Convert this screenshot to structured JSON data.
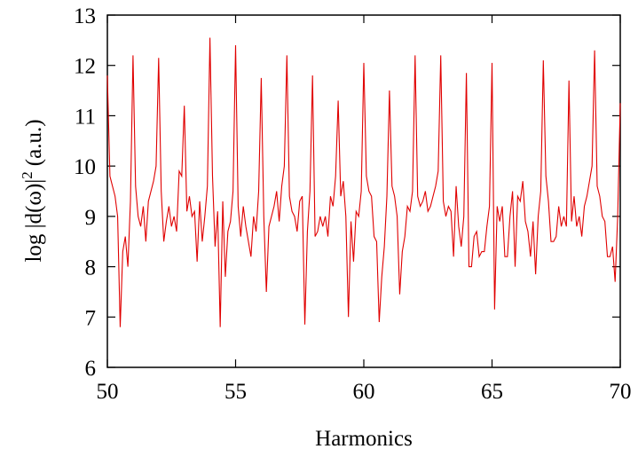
{
  "chart_data": {
    "type": "line",
    "xlabel": "Harmonics",
    "ylabel": "log |d(ω)|",
    "ylabel_superscript": "2",
    "ylabel_unit": "(a.u.)",
    "xlim": [
      50,
      70
    ],
    "ylim": [
      6,
      13
    ],
    "xticks": [
      50,
      55,
      60,
      65,
      70
    ],
    "yticks": [
      6,
      7,
      8,
      9,
      10,
      11,
      12,
      13
    ],
    "grid": false,
    "line_color": "#e00000",
    "series": [
      {
        "x": [
          50.0,
          50.1,
          50.2,
          50.3,
          50.4,
          50.5,
          50.6,
          50.7,
          50.8,
          50.9,
          51.0,
          51.1,
          51.2,
          51.3,
          51.4,
          51.5,
          51.6,
          51.7,
          51.8,
          51.9,
          52.0,
          52.1,
          52.2,
          52.3,
          52.4,
          52.5,
          52.6,
          52.7,
          52.8,
          52.9,
          53.0,
          53.1,
          53.2,
          53.3,
          53.4,
          53.5,
          53.6,
          53.7,
          53.8,
          53.9,
          54.0,
          54.1,
          54.2,
          54.3,
          54.4,
          54.5,
          54.6,
          54.7,
          54.8,
          54.9,
          55.0,
          55.1,
          55.2,
          55.3,
          55.4,
          55.5,
          55.6,
          55.7,
          55.8,
          55.9,
          56.0,
          56.1,
          56.2,
          56.3,
          56.4,
          56.5,
          56.6,
          56.7,
          56.8,
          56.9,
          57.0,
          57.1,
          57.2,
          57.3,
          57.4,
          57.5,
          57.6,
          57.7,
          57.8,
          57.9,
          58.0,
          58.1,
          58.2,
          58.3,
          58.4,
          58.5,
          58.6,
          58.7,
          58.8,
          58.9,
          59.0,
          59.1,
          59.2,
          59.3,
          59.4,
          59.5,
          59.6,
          59.7,
          59.8,
          59.9,
          60.0,
          60.1,
          60.2,
          60.3,
          60.4,
          60.5,
          60.6,
          60.7,
          60.8,
          60.9,
          61.0,
          61.1,
          61.2,
          61.3,
          61.4,
          61.5,
          61.6,
          61.7,
          61.8,
          61.9,
          62.0,
          62.1,
          62.2,
          62.3,
          62.4,
          62.5,
          62.6,
          62.7,
          62.8,
          62.9,
          63.0,
          63.1,
          63.2,
          63.3,
          63.4,
          63.5,
          63.6,
          63.7,
          63.8,
          63.9,
          64.0,
          64.1,
          64.2,
          64.3,
          64.4,
          64.5,
          64.6,
          64.7,
          64.8,
          64.9,
          65.0,
          65.1,
          65.2,
          65.3,
          65.4,
          65.5,
          65.6,
          65.7,
          65.8,
          65.9,
          66.0,
          66.1,
          66.2,
          66.3,
          66.4,
          66.5,
          66.6,
          66.7,
          66.8,
          66.9,
          67.0,
          67.1,
          67.2,
          67.3,
          67.4,
          67.5,
          67.6,
          67.7,
          67.8,
          67.9,
          68.0,
          68.1,
          68.2,
          68.3,
          68.4,
          68.5,
          68.6,
          68.7,
          68.8,
          68.9,
          69.0,
          69.1,
          69.2,
          69.3,
          69.4,
          69.5,
          69.6,
          69.7,
          69.8,
          69.9,
          70.0
        ],
        "y": [
          11.8,
          9.8,
          9.6,
          9.4,
          9.0,
          6.8,
          8.3,
          8.6,
          8.0,
          9.3,
          12.2,
          9.6,
          9.0,
          8.8,
          9.2,
          8.5,
          9.3,
          9.5,
          9.7,
          10.0,
          12.15,
          9.5,
          8.5,
          8.9,
          9.2,
          8.8,
          9.0,
          8.7,
          9.9,
          9.8,
          11.2,
          9.1,
          9.4,
          9.0,
          9.1,
          8.1,
          9.3,
          8.5,
          9.0,
          9.6,
          12.55,
          9.8,
          8.4,
          9.1,
          6.8,
          9.3,
          7.8,
          8.7,
          8.9,
          9.5,
          12.4,
          9.2,
          8.6,
          9.2,
          8.8,
          8.5,
          8.2,
          9.0,
          8.7,
          9.5,
          11.75,
          9.0,
          7.5,
          8.8,
          9.0,
          9.2,
          9.5,
          8.9,
          9.6,
          10.0,
          12.2,
          9.4,
          9.1,
          9.0,
          8.7,
          9.3,
          9.4,
          6.85,
          8.7,
          9.5,
          11.8,
          8.6,
          8.7,
          9.0,
          8.8,
          9.0,
          8.6,
          9.4,
          9.2,
          9.8,
          11.3,
          9.4,
          9.7,
          9.0,
          7.0,
          8.9,
          8.1,
          9.1,
          9.0,
          9.5,
          12.05,
          9.8,
          9.5,
          9.4,
          8.6,
          8.5,
          6.9,
          7.8,
          8.4,
          9.4,
          11.5,
          9.6,
          9.4,
          9.0,
          7.45,
          8.3,
          8.6,
          9.2,
          9.1,
          9.5,
          12.2,
          9.4,
          9.2,
          9.3,
          9.5,
          9.1,
          9.2,
          9.4,
          9.6,
          9.9,
          12.2,
          9.3,
          9.0,
          9.2,
          9.1,
          8.2,
          9.6,
          8.8,
          8.4,
          9.0,
          11.85,
          8.0,
          8.0,
          8.6,
          8.7,
          8.2,
          8.3,
          8.3,
          8.8,
          9.2,
          12.05,
          7.15,
          9.2,
          8.9,
          9.2,
          8.2,
          8.2,
          9.0,
          9.5,
          8.0,
          9.4,
          9.3,
          9.7,
          8.9,
          8.7,
          8.2,
          8.9,
          7.85,
          9.0,
          9.5,
          12.1,
          9.8,
          9.3,
          8.5,
          8.5,
          8.6,
          9.2,
          8.8,
          9.0,
          8.8,
          11.7,
          8.9,
          9.4,
          8.8,
          9.0,
          8.6,
          9.2,
          9.4,
          9.7,
          10.0,
          12.3,
          9.6,
          9.4,
          9.0,
          8.9,
          8.2,
          8.2,
          8.4,
          7.7,
          9.0,
          11.25
        ]
      }
    ]
  }
}
